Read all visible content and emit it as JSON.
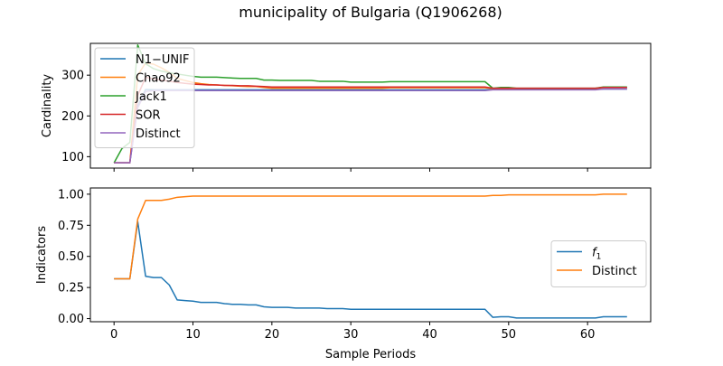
{
  "chart_data": {
    "title": "municipality of Bulgaria (Q1906268)",
    "xlabel": "Sample Periods",
    "xlim": [
      -3,
      68
    ],
    "xticks": [
      0,
      10,
      20,
      30,
      40,
      50,
      60
    ],
    "grid": false,
    "panels": [
      {
        "type": "line",
        "ylabel": "Cardinality",
        "ylim": [
          72,
          378
        ],
        "yticks": [
          100,
          200,
          300
        ],
        "legend_position": "top-left",
        "x": [
          0,
          1,
          2,
          3,
          4,
          5,
          6,
          7,
          8,
          9,
          10,
          11,
          12,
          13,
          14,
          15,
          16,
          17,
          18,
          19,
          20,
          21,
          22,
          23,
          24,
          25,
          26,
          27,
          28,
          29,
          30,
          31,
          32,
          33,
          34,
          35,
          36,
          37,
          38,
          39,
          40,
          41,
          42,
          43,
          44,
          45,
          46,
          47,
          48,
          49,
          50,
          51,
          52,
          53,
          54,
          55,
          56,
          57,
          58,
          59,
          60,
          61,
          62,
          63,
          64,
          65
        ],
        "series": [
          {
            "name": "N1−UNIF",
            "color": "#1f77b4",
            "values": [
              85,
              85,
              85,
              225,
              265,
              264,
              264,
              264,
              264,
              264,
              264,
              264,
              264,
              264,
              264,
              264,
              264,
              264,
              264,
              264,
              264,
              264,
              264,
              264,
              264,
              264,
              264,
              264,
              264,
              264,
              264,
              264,
              264,
              264,
              264,
              264,
              264,
              264,
              264,
              264,
              264,
              264,
              264,
              264,
              264,
              264,
              264,
              264,
              265,
              265,
              265,
              265,
              265,
              265,
              265,
              265,
              265,
              265,
              265,
              265,
              265,
              265,
              266,
              266,
              266,
              266
            ]
          },
          {
            "name": "Chao92",
            "color": "#ff7f0e",
            "values": [
              85,
              85,
              85,
              300,
              330,
              327,
              318,
              307,
              292,
              287,
              282,
              279,
              277,
              276,
              275,
              274,
              273,
              272,
              272,
              270,
              268,
              268,
              268,
              268,
              268,
              268,
              268,
              268,
              268,
              268,
              268,
              268,
              268,
              268,
              268,
              269,
              269,
              269,
              269,
              269,
              269,
              269,
              269,
              269,
              269,
              269,
              269,
              269,
              267,
              267,
              267,
              267,
              267,
              267,
              267,
              267,
              267,
              267,
              267,
              267,
              267,
              267,
              270,
              270,
              270,
              270
            ]
          },
          {
            "name": "Jack1",
            "color": "#2ca02c",
            "values": [
              85,
              120,
              135,
              374,
              328,
              316,
              310,
              306,
              303,
              300,
              297,
              295,
              295,
              295,
              294,
              293,
              292,
              292,
              292,
              288,
              288,
              287,
              287,
              287,
              287,
              287,
              285,
              285,
              285,
              285,
              283,
              283,
              283,
              283,
              283,
              284,
              284,
              284,
              284,
              284,
              284,
              284,
              284,
              284,
              284,
              284,
              284,
              284,
              268,
              270,
              270,
              268,
              268,
              268,
              268,
              268,
              268,
              268,
              268,
              268,
              268,
              268,
              271,
              271,
              271,
              271
            ]
          },
          {
            "name": "SOR",
            "color": "#d62728",
            "values": [
              85,
              85,
              85,
              250,
              295,
              291,
              288,
              285,
              282,
              280,
              278,
              277,
              276,
              276,
              275,
              275,
              274,
              274,
              273,
              272,
              271,
              271,
              271,
              271,
              271,
              271,
              271,
              271,
              271,
              271,
              271,
              271,
              271,
              271,
              271,
              271,
              271,
              271,
              271,
              271,
              271,
              271,
              271,
              271,
              271,
              271,
              271,
              271,
              268,
              268,
              268,
              268,
              268,
              268,
              268,
              268,
              268,
              268,
              268,
              268,
              268,
              268,
              270,
              270,
              270,
              270
            ]
          },
          {
            "name": "Distinct",
            "color": "#9467bd",
            "values": [
              85,
              85,
              85,
              220,
              260,
              262,
              262,
              262,
              262,
              262,
              262,
              262,
              262,
              262,
              262,
              262,
              262,
              262,
              262,
              262,
              262,
              262,
              262,
              262,
              262,
              262,
              262,
              262,
              262,
              262,
              262,
              262,
              262,
              262,
              262,
              262,
              262,
              262,
              262,
              262,
              262,
              262,
              262,
              262,
              262,
              262,
              262,
              262,
              264,
              264,
              264,
              264,
              264,
              264,
              264,
              264,
              264,
              264,
              264,
              264,
              264,
              264,
              266,
              266,
              266,
              266
            ]
          }
        ]
      },
      {
        "type": "line",
        "ylabel": "Indicators",
        "ylim": [
          -0.025,
          1.05
        ],
        "yticks": [
          0.0,
          0.25,
          0.5,
          0.75,
          1.0
        ],
        "ytick_labels": [
          "0.00",
          "0.25",
          "0.50",
          "0.75",
          "1.00"
        ],
        "legend_position": "center-right",
        "x": [
          0,
          1,
          2,
          3,
          4,
          5,
          6,
          7,
          8,
          9,
          10,
          11,
          12,
          13,
          14,
          15,
          16,
          17,
          18,
          19,
          20,
          21,
          22,
          23,
          24,
          25,
          26,
          27,
          28,
          29,
          30,
          31,
          32,
          33,
          34,
          35,
          36,
          37,
          38,
          39,
          40,
          41,
          42,
          43,
          44,
          45,
          46,
          47,
          48,
          49,
          50,
          51,
          52,
          53,
          54,
          55,
          56,
          57,
          58,
          59,
          60,
          61,
          62,
          63,
          64,
          65
        ],
        "series": [
          {
            "name": "f1",
            "label_main": "f",
            "label_sub": "1",
            "color": "#1f77b4",
            "values": [
              0.32,
              0.32,
              0.32,
              0.78,
              0.34,
              0.33,
              0.33,
              0.27,
              0.15,
              0.145,
              0.14,
              0.13,
              0.13,
              0.13,
              0.12,
              0.115,
              0.115,
              0.11,
              0.11,
              0.095,
              0.09,
              0.09,
              0.09,
              0.085,
              0.085,
              0.085,
              0.085,
              0.08,
              0.08,
              0.08,
              0.075,
              0.075,
              0.075,
              0.075,
              0.075,
              0.075,
              0.075,
              0.075,
              0.075,
              0.075,
              0.075,
              0.075,
              0.075,
              0.075,
              0.075,
              0.075,
              0.075,
              0.075,
              0.01,
              0.015,
              0.015,
              0.005,
              0.005,
              0.005,
              0.005,
              0.005,
              0.005,
              0.005,
              0.005,
              0.005,
              0.005,
              0.005,
              0.015,
              0.015,
              0.015,
              0.015
            ]
          },
          {
            "name": "Distinct",
            "color": "#ff7f0e",
            "values": [
              0.32,
              0.32,
              0.32,
              0.8,
              0.95,
              0.95,
              0.95,
              0.96,
              0.975,
              0.98,
              0.985,
              0.985,
              0.985,
              0.985,
              0.985,
              0.985,
              0.985,
              0.985,
              0.985,
              0.985,
              0.985,
              0.985,
              0.985,
              0.985,
              0.985,
              0.985,
              0.985,
              0.985,
              0.985,
              0.985,
              0.985,
              0.985,
              0.985,
              0.985,
              0.985,
              0.985,
              0.985,
              0.985,
              0.985,
              0.985,
              0.985,
              0.985,
              0.985,
              0.985,
              0.985,
              0.985,
              0.985,
              0.985,
              0.99,
              0.99,
              0.995,
              0.995,
              0.995,
              0.995,
              0.995,
              0.995,
              0.995,
              0.995,
              0.995,
              0.995,
              0.995,
              0.995,
              1.0,
              1.0,
              1.0,
              1.0
            ]
          }
        ]
      }
    ]
  }
}
